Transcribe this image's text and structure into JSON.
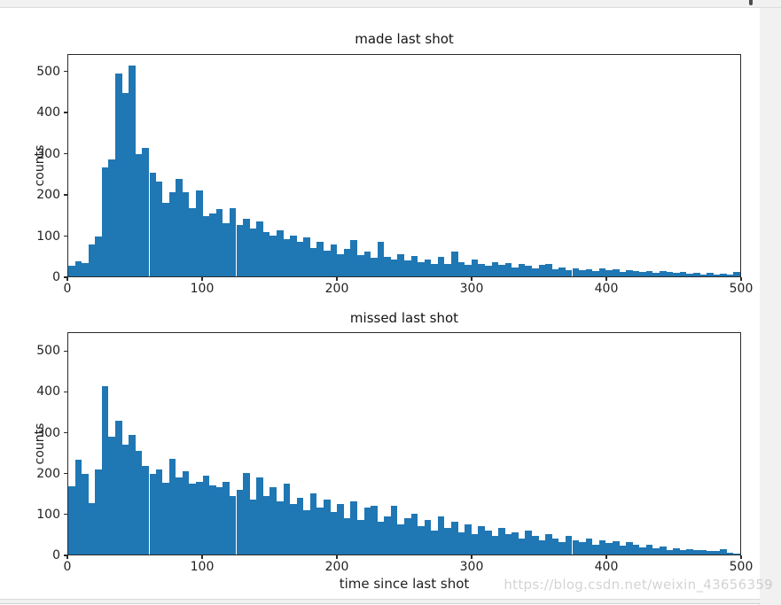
{
  "page": {
    "watermark": "https://blog.csdn.net/weixin_43656359",
    "background_color": "#f1f1f1",
    "figure_background": "#ffffff"
  },
  "chart_data": [
    {
      "type": "bar",
      "subtype": "histogram",
      "title": "made last shot",
      "xlabel": "",
      "ylabel": "counts",
      "bar_color": "#1f77b4",
      "xlim": [
        0,
        500
      ],
      "ylim": [
        0,
        542
      ],
      "xticks": [
        0,
        100,
        200,
        300,
        400,
        500
      ],
      "yticks": [
        0,
        100,
        200,
        300,
        400,
        500
      ],
      "bin_start": 0,
      "bin_width": 5,
      "gap_line_x": 60,
      "grid": false,
      "legend": "none",
      "counts": [
        25,
        36,
        32,
        77,
        98,
        267,
        287,
        496,
        448,
        515,
        300,
        314,
        253,
        231,
        181,
        206,
        238,
        205,
        168,
        210,
        148,
        155,
        165,
        130,
        168,
        125,
        142,
        118,
        135,
        108,
        100,
        112,
        92,
        100,
        85,
        95,
        70,
        85,
        62,
        78,
        55,
        68,
        88,
        52,
        60,
        45,
        85,
        48,
        42,
        55,
        38,
        50,
        35,
        42,
        30,
        48,
        30,
        60,
        35,
        28,
        42,
        30,
        25,
        35,
        28,
        32,
        22,
        30,
        25,
        20,
        28,
        30,
        18,
        22,
        15,
        20,
        15,
        18,
        12,
        20,
        15,
        18,
        10,
        15,
        12,
        10,
        14,
        8,
        12,
        10,
        8,
        10,
        6,
        8,
        5,
        8,
        5,
        7,
        4,
        11
      ]
    },
    {
      "type": "bar",
      "subtype": "histogram",
      "title": "missed last shot",
      "xlabel": "time since last shot",
      "ylabel": "counts",
      "bar_color": "#1f77b4",
      "xlim": [
        0,
        500
      ],
      "ylim": [
        0,
        546
      ],
      "xticks": [
        0,
        100,
        200,
        300,
        400,
        500
      ],
      "yticks": [
        0,
        100,
        200,
        300,
        400,
        500
      ],
      "bin_start": 0,
      "bin_width": 5,
      "gap_line_x": 60,
      "grid": false,
      "legend": "none",
      "counts": [
        169,
        233,
        198,
        126,
        209,
        415,
        291,
        330,
        270,
        295,
        255,
        219,
        198,
        210,
        178,
        235,
        190,
        205,
        175,
        180,
        195,
        170,
        165,
        180,
        145,
        160,
        200,
        135,
        190,
        145,
        165,
        130,
        175,
        125,
        140,
        110,
        150,
        115,
        135,
        105,
        125,
        90,
        130,
        85,
        115,
        120,
        80,
        95,
        120,
        75,
        90,
        100,
        70,
        85,
        60,
        95,
        65,
        80,
        55,
        75,
        50,
        70,
        60,
        45,
        65,
        50,
        55,
        40,
        60,
        45,
        35,
        50,
        40,
        30,
        45,
        35,
        30,
        40,
        25,
        35,
        28,
        32,
        22,
        30,
        25,
        18,
        25,
        15,
        20,
        12,
        15,
        12,
        14,
        10,
        12,
        8,
        9,
        14,
        5,
        3
      ]
    }
  ]
}
